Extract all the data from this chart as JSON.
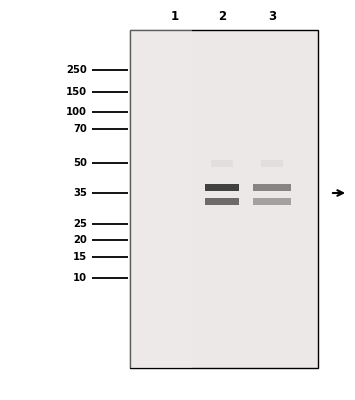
{
  "lane_labels": [
    "1",
    "2",
    "3"
  ],
  "mw_markers": [
    "250",
    "150",
    "100",
    "70",
    "50",
    "35",
    "25",
    "20",
    "15",
    "10"
  ],
  "gel_bg_color": "#ede8e8",
  "gel_border_color": "#000000",
  "band_color_lane2_top": "#2a2a2a",
  "band_color_lane2_bot": "#3a3a3a",
  "band_color_lane3_top": "#555555",
  "band_color_lane3_bot": "#666666",
  "bg_color": "#ffffff",
  "arrow_color": "#000000"
}
